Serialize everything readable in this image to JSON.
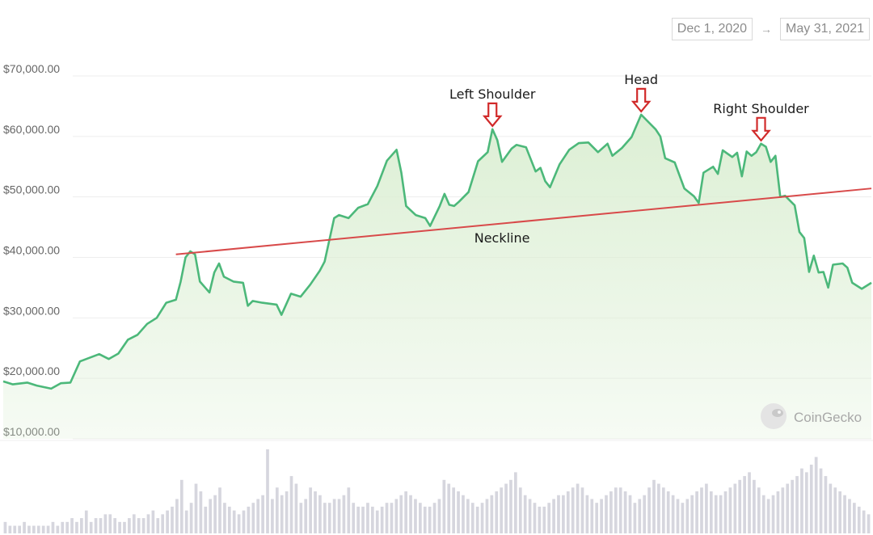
{
  "date_range": {
    "start": "Dec 1, 2020",
    "arrow": "→",
    "end": "May 31, 2021"
  },
  "watermark": "CoinGecko",
  "colors": {
    "price_line": "#4cb87a",
    "area_fill": "#dcefd4",
    "neckline": "#d84a4a",
    "marker_arrow": "#d12a2a",
    "volume_bar": "#d6d6de"
  },
  "chart_data": {
    "type": "area",
    "y_ticks": [
      "$70,000.00",
      "$60,000.00",
      "$50,000.00",
      "$40,000.00",
      "$30,000.00",
      "$20,000.00",
      "$10,000.00"
    ],
    "y_tick_values": [
      70000,
      60000,
      50000,
      40000,
      30000,
      20000,
      10000
    ],
    "ylim": [
      10000,
      70000
    ],
    "x_range": [
      "2020-12-01",
      "2021-05-31"
    ],
    "grid": true,
    "price_series": [
      [
        "2020-12-01",
        19500
      ],
      [
        "2020-12-03",
        19000
      ],
      [
        "2020-12-06",
        19300
      ],
      [
        "2020-12-08",
        18800
      ],
      [
        "2020-12-11",
        18300
      ],
      [
        "2020-12-13",
        19200
      ],
      [
        "2020-12-15",
        19300
      ],
      [
        "2020-12-17",
        22800
      ],
      [
        "2020-12-19",
        23400
      ],
      [
        "2020-12-21",
        24000
      ],
      [
        "2020-12-23",
        23200
      ],
      [
        "2020-12-25",
        24100
      ],
      [
        "2020-12-27",
        26400
      ],
      [
        "2020-12-29",
        27200
      ],
      [
        "2020-12-31",
        29000
      ],
      [
        "2021-01-02",
        30000
      ],
      [
        "2021-01-04",
        32500
      ],
      [
        "2021-01-06",
        33000
      ],
      [
        "2021-01-07",
        36000
      ],
      [
        "2021-01-08",
        40000
      ],
      [
        "2021-01-09",
        41000
      ],
      [
        "2021-01-10",
        40500
      ],
      [
        "2021-01-11",
        36000
      ],
      [
        "2021-01-13",
        34200
      ],
      [
        "2021-01-14",
        37500
      ],
      [
        "2021-01-15",
        39000
      ],
      [
        "2021-01-16",
        36800
      ],
      [
        "2021-01-18",
        36000
      ],
      [
        "2021-01-20",
        35800
      ],
      [
        "2021-01-21",
        32000
      ],
      [
        "2021-01-22",
        32800
      ],
      [
        "2021-01-24",
        32500
      ],
      [
        "2021-01-27",
        32200
      ],
      [
        "2021-01-28",
        30500
      ],
      [
        "2021-01-30",
        34000
      ],
      [
        "2021-02-01",
        33500
      ],
      [
        "2021-02-03",
        35500
      ],
      [
        "2021-02-05",
        37800
      ],
      [
        "2021-02-06",
        39300
      ],
      [
        "2021-02-08",
        46500
      ],
      [
        "2021-02-09",
        47000
      ],
      [
        "2021-02-11",
        46500
      ],
      [
        "2021-02-13",
        48200
      ],
      [
        "2021-02-15",
        48800
      ],
      [
        "2021-02-17",
        51800
      ],
      [
        "2021-02-19",
        56000
      ],
      [
        "2021-02-21",
        57800
      ],
      [
        "2021-02-22",
        54000
      ],
      [
        "2021-02-23",
        48500
      ],
      [
        "2021-02-25",
        47000
      ],
      [
        "2021-02-27",
        46500
      ],
      [
        "2021-02-28",
        45200
      ],
      [
        "2021-03-02",
        48500
      ],
      [
        "2021-03-03",
        50500
      ],
      [
        "2021-03-04",
        48700
      ],
      [
        "2021-03-05",
        48500
      ],
      [
        "2021-03-06",
        49200
      ],
      [
        "2021-03-08",
        50800
      ],
      [
        "2021-03-10",
        55900
      ],
      [
        "2021-03-12",
        57400
      ],
      [
        "2021-03-13",
        61200
      ],
      [
        "2021-03-14",
        59400
      ],
      [
        "2021-03-15",
        55800
      ],
      [
        "2021-03-17",
        58000
      ],
      [
        "2021-03-18",
        58600
      ],
      [
        "2021-03-20",
        58200
      ],
      [
        "2021-03-22",
        54200
      ],
      [
        "2021-03-23",
        54800
      ],
      [
        "2021-03-24",
        52600
      ],
      [
        "2021-03-25",
        51600
      ],
      [
        "2021-03-27",
        55400
      ],
      [
        "2021-03-29",
        57800
      ],
      [
        "2021-03-31",
        58900
      ],
      [
        "2021-04-02",
        59000
      ],
      [
        "2021-04-04",
        57400
      ],
      [
        "2021-04-06",
        58800
      ],
      [
        "2021-04-07",
        56800
      ],
      [
        "2021-04-09",
        58100
      ],
      [
        "2021-04-11",
        59900
      ],
      [
        "2021-04-13",
        63600
      ],
      [
        "2021-04-14",
        62800
      ],
      [
        "2021-04-16",
        61200
      ],
      [
        "2021-04-17",
        60000
      ],
      [
        "2021-04-18",
        56400
      ],
      [
        "2021-04-20",
        55700
      ],
      [
        "2021-04-22",
        51400
      ],
      [
        "2021-04-24",
        50100
      ],
      [
        "2021-04-25",
        49000
      ],
      [
        "2021-04-26",
        54000
      ],
      [
        "2021-04-28",
        55000
      ],
      [
        "2021-04-29",
        53800
      ],
      [
        "2021-04-30",
        57700
      ],
      [
        "2021-05-02",
        56600
      ],
      [
        "2021-05-03",
        57300
      ],
      [
        "2021-05-04",
        53400
      ],
      [
        "2021-05-05",
        57500
      ],
      [
        "2021-05-06",
        56800
      ],
      [
        "2021-05-07",
        57400
      ],
      [
        "2021-05-08",
        58800
      ],
      [
        "2021-05-09",
        58300
      ],
      [
        "2021-05-10",
        55800
      ],
      [
        "2021-05-11",
        56800
      ],
      [
        "2021-05-12",
        50000
      ],
      [
        "2021-05-13",
        50200
      ],
      [
        "2021-05-15",
        48600
      ],
      [
        "2021-05-16",
        44200
      ],
      [
        "2021-05-17",
        43200
      ],
      [
        "2021-05-18",
        37600
      ],
      [
        "2021-05-19",
        40300
      ],
      [
        "2021-05-20",
        37500
      ],
      [
        "2021-05-21",
        37600
      ],
      [
        "2021-05-22",
        35000
      ],
      [
        "2021-05-23",
        38800
      ],
      [
        "2021-05-25",
        39000
      ],
      [
        "2021-05-26",
        38300
      ],
      [
        "2021-05-27",
        35800
      ],
      [
        "2021-05-29",
        34800
      ],
      [
        "2021-05-31",
        35800
      ]
    ],
    "volume_series": [
      3,
      2,
      2,
      2,
      3,
      2,
      2,
      2,
      2,
      2,
      3,
      2,
      3,
      3,
      4,
      3,
      4,
      6,
      3,
      4,
      4,
      5,
      5,
      4,
      3,
      3,
      4,
      5,
      4,
      4,
      5,
      6,
      4,
      5,
      6,
      7,
      9,
      14,
      6,
      8,
      13,
      11,
      7,
      9,
      10,
      12,
      8,
      7,
      6,
      5,
      6,
      7,
      8,
      9,
      10,
      22,
      9,
      12,
      10,
      11,
      15,
      13,
      8,
      9,
      12,
      11,
      10,
      8,
      8,
      9,
      9,
      10,
      12,
      8,
      7,
      7,
      8,
      7,
      6,
      7,
      8,
      8,
      9,
      10,
      11,
      10,
      9,
      8,
      7,
      7,
      8,
      9,
      14,
      13,
      12,
      11,
      10,
      9,
      8,
      7,
      8,
      9,
      10,
      11,
      12,
      13,
      14,
      16,
      12,
      10,
      9,
      8,
      7,
      7,
      8,
      9,
      10,
      10,
      11,
      12,
      13,
      12,
      10,
      9,
      8,
      9,
      10,
      11,
      12,
      12,
      11,
      10,
      8,
      9,
      10,
      12,
      14,
      13,
      12,
      11,
      10,
      9,
      8,
      9,
      10,
      11,
      12,
      13,
      11,
      10,
      10,
      11,
      12,
      13,
      14,
      15,
      16,
      14,
      12,
      10,
      9,
      10,
      11,
      12,
      13,
      14,
      15,
      17,
      16,
      18,
      20,
      17,
      15,
      13,
      12,
      11,
      10,
      9,
      8,
      7,
      6,
      5
    ],
    "neckline": {
      "start": [
        "2021-01-06",
        40500
      ],
      "end": [
        "2021-05-31",
        51400
      ]
    },
    "annotations": [
      {
        "label": "Left Shoulder",
        "date": "2021-03-13",
        "price": 61200
      },
      {
        "label": "Head",
        "date": "2021-04-13",
        "price": 63600
      },
      {
        "label": "Right Shoulder",
        "date": "2021-05-08",
        "price": 58800
      },
      {
        "label": "Neckline",
        "date": "2021-03-15",
        "price": 43300
      }
    ]
  }
}
